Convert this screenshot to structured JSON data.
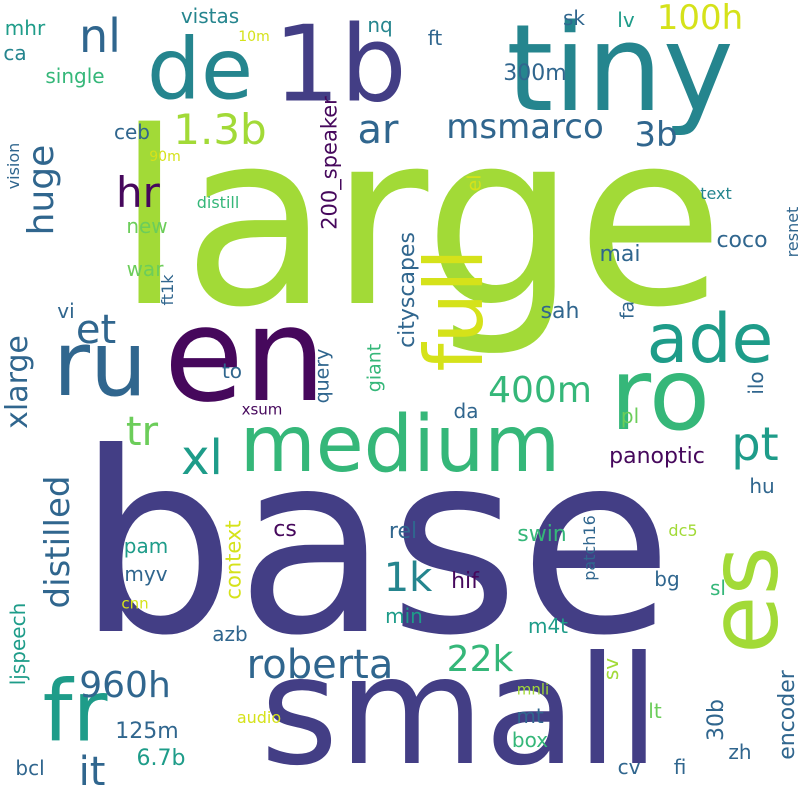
{
  "palette": {
    "background": "#ffffff",
    "dark_purple": "#46085c",
    "indigo": "#433e85",
    "blue": "#30668e",
    "teal": "#25858e",
    "green_teal": "#1e9c89",
    "green": "#35b779",
    "light_green": "#6ccd5a",
    "lime": "#a2da37",
    "yellow": "#d5e21a"
  },
  "words": {
    "base": "base",
    "large": "large",
    "small": "small",
    "tiny": "tiny",
    "en": "en",
    "ro": "ro",
    "1b": "1b",
    "ru": "ru",
    "de": "de",
    "fr": "fr",
    "medium": "medium",
    "ade": "ade",
    "es": "es",
    "full": "full",
    "roberta": "roberta",
    "msmarco": "msmarco",
    "distilled": "distilled",
    "huge": "huge",
    "xlarge": "xlarge",
    "1_3b": "1.3b",
    "400m": "400m",
    "22k": "22k",
    "960h": "960h",
    "nl": "nl",
    "hr": "hr",
    "et": "et",
    "ar": "ar",
    "xl": "xl",
    "tr": "tr",
    "pt": "pt",
    "it": "it",
    "1k": "1k",
    "100h": "100h",
    "3b": "3b",
    "200_speaker": "200_speaker",
    "cityscapes": "cityscapes",
    "panoptic": "panoptic",
    "encoder": "encoder",
    "context": "context",
    "ljspeech": "ljspeech",
    "query": "query",
    "giant": "giant",
    "300m": "300m",
    "125m": "125m",
    "6_7b": "6.7b",
    "30b": "30b",
    "coco": "coco",
    "swin": "swin",
    "single": "single",
    "vistas": "vistas",
    "hif": "hif",
    "sah": "sah",
    "mai": "mai",
    "mhr": "mhr",
    "ca": "ca",
    "ceb": "ceb",
    "new": "new",
    "war": "war",
    "vi": "vi",
    "to": "to",
    "cs": "cs",
    "rel": "rel",
    "pam": "pam",
    "myv": "myv",
    "azb": "azb",
    "min": "min",
    "m4t": "m4t",
    "mt": "mt",
    "box": "box",
    "bcl": "bcl",
    "cv": "cv",
    "fi": "fi",
    "zh": "zh",
    "lt": "lt",
    "sv": "sv",
    "sl": "sl",
    "bg": "bg",
    "hu": "hu",
    "pl": "pl",
    "da": "da",
    "ilo": "ilo",
    "fa": "fa",
    "el": "el",
    "sk": "sk",
    "lv": "lv",
    "nq": "nq",
    "ft": "ft",
    "text": "text",
    "distill": "distill",
    "ft1k": "ft1k",
    "xsum": "xsum",
    "patch16": "patch16",
    "dc5": "dc5",
    "cnn": "cnn",
    "mnli": "mnli",
    "audio": "audio",
    "resnet": "resnet",
    "vision": "vision",
    "10m": "10m",
    "90m": "90m"
  }
}
